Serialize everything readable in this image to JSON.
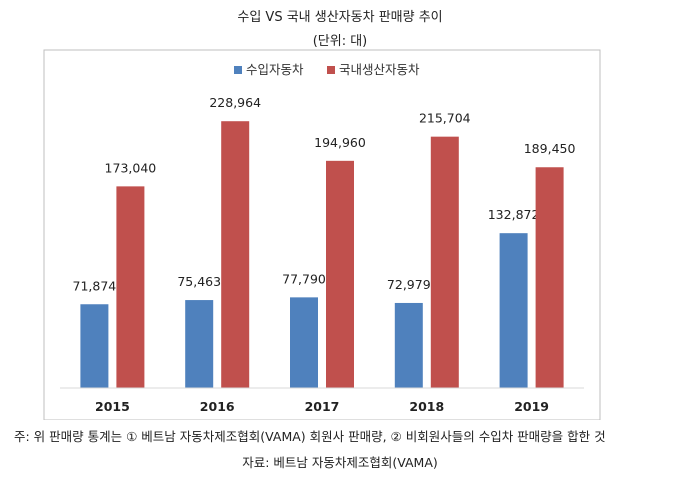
{
  "chart_data": {
    "type": "bar",
    "title": "수입 VS 국내 생산자동차 판매량 추이",
    "subtitle": "(단위: 대)",
    "categories": [
      "2015",
      "2016",
      "2017",
      "2018",
      "2019"
    ],
    "series": [
      {
        "name": "수입자동차",
        "color": "#4f81bd",
        "values": [
          71874,
          75463,
          77790,
          72979,
          132872
        ]
      },
      {
        "name": "국내생산자동차",
        "color": "#c0504d",
        "values": [
          173040,
          228964,
          194960,
          215704,
          189450
        ]
      }
    ],
    "data_labels": [
      [
        "71,874",
        "75,463",
        "77,790",
        "72,979",
        "132,872"
      ],
      [
        "173,040",
        "228,964",
        "194,960",
        "215,704",
        "189,450"
      ]
    ],
    "ylim": [
      0,
      230000
    ],
    "grid": false,
    "legend_position": "top-center",
    "xlabel": "",
    "ylabel": ""
  },
  "note": "주: 위 판매량 통계는 ① 베트남 자동차제조협회(VAMA) 회원사 판매량, ② 비회원사들의 수입차 판매량을 합한 것",
  "source": "자료: 베트남 자동차제조협회(VAMA)"
}
